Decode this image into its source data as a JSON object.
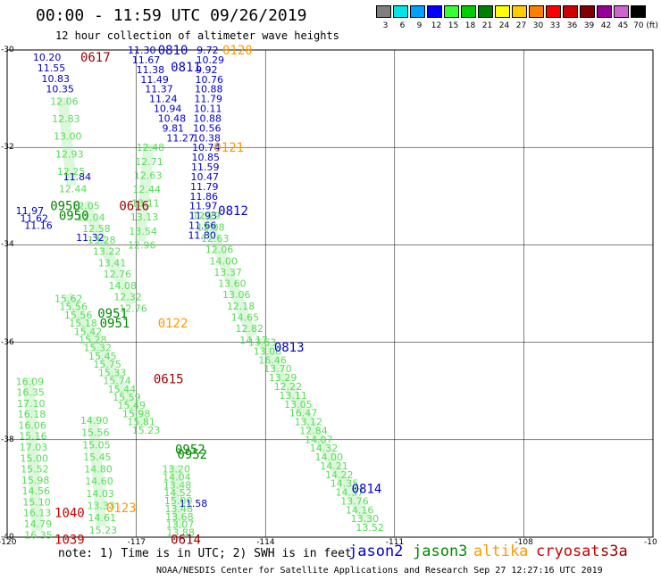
{
  "header": {
    "title": "00:00 - 11:59 UTC 09/26/2019",
    "subtitle": "12 hour collection of altimeter wave heights"
  },
  "legend": {
    "unit": "(ft)",
    "bins": [
      {
        "label": "3",
        "color": "#7f7f7f"
      },
      {
        "label": "6",
        "color": "#00e5e5"
      },
      {
        "label": "9",
        "color": "#00a0ff"
      },
      {
        "label": "12",
        "color": "#0000ff"
      },
      {
        "label": "15",
        "color": "#33ff33"
      },
      {
        "label": "18",
        "color": "#00cc00"
      },
      {
        "label": "21",
        "color": "#008000"
      },
      {
        "label": "24",
        "color": "#ffff00"
      },
      {
        "label": "27",
        "color": "#ffcc00"
      },
      {
        "label": "30",
        "color": "#ff8000"
      },
      {
        "label": "33",
        "color": "#ff0000"
      },
      {
        "label": "36",
        "color": "#cc0000"
      },
      {
        "label": "39",
        "color": "#800000"
      },
      {
        "label": "42",
        "color": "#990099"
      },
      {
        "label": "45",
        "color": "#cc66cc"
      },
      {
        "label": "70",
        "color": "#000000"
      }
    ]
  },
  "axes": {
    "lon_ticks": [
      "-120",
      "-117",
      "-114",
      "-111",
      "-108",
      "-10"
    ],
    "lat_ticks": [
      "-30",
      "-32",
      "-34",
      "-36",
      "-38",
      "-40"
    ]
  },
  "satellites": {
    "jason2": {
      "label": "jason2",
      "color": "#0000cc"
    },
    "jason3": {
      "label": "jason3",
      "color": "#008800"
    },
    "altika": {
      "label": "altika",
      "color": "#ff9900"
    },
    "cryosat": {
      "label": "cryosat",
      "color": "#cc0000"
    },
    "s3a": {
      "label": "s3a",
      "color": "#990000"
    }
  },
  "footer": {
    "note": "note: 1) Time is in UTC; 2) SWH is in feet",
    "credit": "NOAA/NESDIS Center for Satellite Applications and Research  Sep 27 12:27:16 UTC 2019"
  },
  "time_labels": [
    {
      "text": "0810",
      "sat": "jason2",
      "lon": -116.5,
      "lat": -30.0
    },
    {
      "text": "0811",
      "sat": "jason2",
      "lon": -116.2,
      "lat": -30.35
    },
    {
      "text": "0120",
      "sat": "altika",
      "lon": -115.0,
      "lat": -30.0
    },
    {
      "text": "0617",
      "sat": "s3a",
      "lon": -118.3,
      "lat": -30.15
    },
    {
      "text": "0121",
      "sat": "altika",
      "lon": -115.2,
      "lat": -32.0
    },
    {
      "text": "0616",
      "sat": "s3a",
      "lon": -117.4,
      "lat": -33.2
    },
    {
      "text": "0950",
      "sat": "jason3",
      "lon": -119.0,
      "lat": -33.2
    },
    {
      "text": "0950",
      "sat": "jason3",
      "lon": -118.8,
      "lat": -33.4
    },
    {
      "text": "0812",
      "sat": "jason2",
      "lon": -115.1,
      "lat": -33.3
    },
    {
      "text": "0951",
      "sat": "jason3",
      "lon": -117.9,
      "lat": -35.4
    },
    {
      "text": "0951",
      "sat": "jason3",
      "lon": -117.85,
      "lat": -35.6
    },
    {
      "text": "0122",
      "sat": "altika",
      "lon": -116.5,
      "lat": -35.6
    },
    {
      "text": "0813",
      "sat": "jason2",
      "lon": -113.8,
      "lat": -36.1
    },
    {
      "text": "0615",
      "sat": "s3a",
      "lon": -116.6,
      "lat": -36.75
    },
    {
      "text": "0952",
      "sat": "jason3",
      "lon": -116.1,
      "lat": -38.2
    },
    {
      "text": "0952",
      "sat": "jason3",
      "lon": -116.05,
      "lat": -38.3
    },
    {
      "text": "0814",
      "sat": "jason2",
      "lon": -112.0,
      "lat": -39.0
    },
    {
      "text": "0123",
      "sat": "altika",
      "lon": -117.7,
      "lat": -39.4
    },
    {
      "text": "1040",
      "sat": "cryosat",
      "lon": -118.9,
      "lat": -39.5
    },
    {
      "text": "0614",
      "sat": "s3a",
      "lon": -116.2,
      "lat": -40.05
    },
    {
      "text": "1039",
      "sat": "cryosat",
      "lon": -118.9,
      "lat": -40.05
    }
  ],
  "tracks": [
    {
      "name": "jason2-a",
      "sat": "jason2",
      "values": [
        "11.30",
        "11.67",
        "11.38",
        "11.49",
        "11.37",
        "11.24",
        "10.94",
        "10.48",
        "9.81",
        "11.27"
      ],
      "lon0": -117.2,
      "lat0": -30.0,
      "lon1": -116.3,
      "lat1": -31.8
    },
    {
      "name": "jason2-b",
      "sat": "jason2",
      "values": [
        "9.72",
        "10.29",
        "9.92",
        "10.76",
        "10.88",
        "11.79",
        "10.11",
        "10.88",
        "10.56",
        "10.38",
        "10.74",
        "10.85",
        "11.59",
        "10.47",
        "11.79",
        "11.86",
        "11.97",
        "11.93",
        "11.66",
        "11.80"
      ],
      "lon0": -115.6,
      "lat0": -30.0,
      "lon1": -115.8,
      "lat1": -33.8
    },
    {
      "name": "jason2-c",
      "sat": "jason2",
      "values": [
        "10.20",
        "11.55",
        "10.83",
        "10.35"
      ],
      "lon0": -119.4,
      "lat0": -30.15,
      "lon1": -119.1,
      "lat1": -30.8
    },
    {
      "name": "jason2-d",
      "sat": "jason2",
      "values": [
        "11.84"
      ],
      "lon0": -118.7,
      "lat0": -32.6,
      "lon1": -118.7,
      "lat1": -32.6
    },
    {
      "name": "jason2-e",
      "sat": "jason2",
      "values": [
        "11.97",
        "11.62",
        "11.16"
      ],
      "lon0": -119.8,
      "lat0": -33.3,
      "lon1": -119.6,
      "lat1": -33.6
    },
    {
      "name": "jason2-f",
      "sat": "jason2",
      "values": [
        "11.32"
      ],
      "lon0": -118.4,
      "lat0": -33.85,
      "lon1": -118.4,
      "lat1": -33.85
    },
    {
      "name": "jason2-g",
      "sat": "jason2",
      "values": [
        "11.58"
      ],
      "lon0": -116.0,
      "lat0": -39.3,
      "lon1": -116.0,
      "lat1": -39.3
    },
    {
      "name": "jason3-lg",
      "sat": "lightgreen",
      "values": [
        "12.06",
        "12.83",
        "13.00",
        "12.93",
        "12.25",
        "12.44"
      ],
      "lon0": -119.0,
      "lat0": -31.05,
      "lon1": -118.8,
      "lat1": -32.85
    },
    {
      "name": "jason3-lg2",
      "sat": "lightgreen",
      "values": [
        "12.05",
        "12.04",
        "12.58",
        "13.28",
        "13.22",
        "13.41",
        "12.76",
        "14.08",
        "12.32",
        "12.76"
      ],
      "lon0": -118.5,
      "lat0": -33.2,
      "lon1": -117.4,
      "lat1": -35.3
    },
    {
      "name": "jason3-c",
      "sat": "lightgreen",
      "values": [
        "12.48",
        "12.71",
        "12.63",
        "12.44",
        "13.11",
        "13.13",
        "13.54",
        "12.96"
      ],
      "lon0": -117.0,
      "lat0": -32.0,
      "lon1": -117.2,
      "lat1": -34.0
    },
    {
      "name": "jason3-d",
      "sat": "lightgreen",
      "values": [
        "12.29",
        "12.08",
        "12.63",
        "12.06",
        "14.00",
        "13.37",
        "13.60",
        "13.06",
        "12.18",
        "14.65",
        "12.82",
        "14.17"
      ],
      "lon0": -115.7,
      "lat0": -33.4,
      "lon1": -114.6,
      "lat1": -35.95
    },
    {
      "name": "jason3-e",
      "sat": "lightgreen",
      "values": [
        "13.63",
        "13.08",
        "16.46",
        "13.70",
        "13.29",
        "12.22",
        "13.11",
        "13.05",
        "16.47",
        "13.12",
        "12.84",
        "14.07",
        "14.32",
        "14.00",
        "14.21",
        "14.22",
        "14.35",
        "14.37",
        "13.76",
        "14.16",
        "13.30",
        "13.52"
      ],
      "lon0": -114.4,
      "lat0": -36.0,
      "lon1": -111.9,
      "lat1": -39.8
    },
    {
      "name": "jason3-f",
      "sat": "lightgreen",
      "values": [
        "15.62",
        "15.56",
        "15.56",
        "15.18",
        "15.42",
        "15.28",
        "15.32",
        "15.45",
        "15.75",
        "15.33",
        "15.74",
        "15.44",
        "15.59",
        "15.49",
        "15.98",
        "15.81",
        "15.23"
      ],
      "lon0": -118.9,
      "lat0": -35.1,
      "lon1": -117.1,
      "lat1": -37.8
    },
    {
      "name": "jason3-g",
      "sat": "lightgreen",
      "values": [
        "16.09",
        "16.35",
        "17.10",
        "16.18",
        "16.06",
        "15.16",
        "17.03",
        "15.00",
        "15.52",
        "15.98",
        "14.56",
        "15.10",
        "16.13",
        "14.79",
        "16.35"
      ],
      "lon0": -119.8,
      "lat0": -36.8,
      "lon1": -119.6,
      "lat1": -39.95
    },
    {
      "name": "jason3-h",
      "sat": "lightgreen",
      "values": [
        "14.90",
        "15.56",
        "15.05",
        "15.45",
        "14.80",
        "14.60",
        "14.03",
        "13.33",
        "14.61",
        "15.23"
      ],
      "lon0": -118.3,
      "lat0": -37.6,
      "lon1": -118.1,
      "lat1": -39.85
    },
    {
      "name": "jason3-i",
      "sat": "lightgreen",
      "values": [
        "13.20",
        "14.04",
        "13.48",
        "14.52",
        "15.00",
        "13.48",
        "13.68",
        "13.07",
        "13.88"
      ],
      "lon0": -116.4,
      "lat0": -38.6,
      "lon1": -116.3,
      "lat1": -39.9
    }
  ]
}
